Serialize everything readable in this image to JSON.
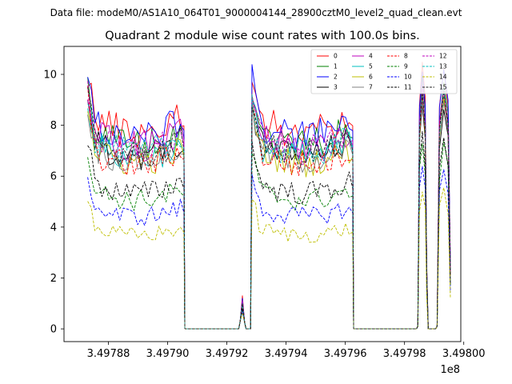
{
  "figure": {
    "suptitle": "Data file: modeM0/AS1A10_064T01_9000004144_28900cztM0_level2_quad_clean.evt",
    "title": "Quadrant 2 module wise count rates with 100.0s bins."
  },
  "chart_data": {
    "type": "line",
    "title": "Quadrant 2 module wise count rates with 100.0s bins.",
    "xlabel": "",
    "ylabel": "",
    "x_offset_label": "1e8",
    "xlim": [
      3.497865,
      3.497999
    ],
    "ylim": [
      -0.5,
      11.1
    ],
    "xticks": [
      3.49788,
      3.4979,
      3.49792,
      3.49794,
      3.49796,
      3.49798,
      3.498
    ],
    "xtick_labels": [
      "3.49788",
      "3.49790",
      "3.49792",
      "3.49794",
      "3.49796",
      "3.49798",
      "3.49800"
    ],
    "yticks": [
      0,
      2,
      4,
      6,
      8,
      10
    ],
    "ytick_labels": [
      "0",
      "2",
      "4",
      "6",
      "8",
      "10"
    ],
    "legend_position": "upper right",
    "segments": [
      {
        "kind": "data",
        "x0": 3.497873,
        "x1": 3.4979055
      },
      {
        "kind": "gap",
        "x0": 3.497906,
        "x1": 3.497924
      },
      {
        "kind": "spike",
        "x0": 3.4979245,
        "x1": 3.497926
      },
      {
        "kind": "gap",
        "x0": 3.4979265,
        "x1": 3.497928
      },
      {
        "kind": "data",
        "x0": 3.4979285,
        "x1": 3.4979625
      },
      {
        "kind": "gap",
        "x0": 3.497963,
        "x1": 3.497984
      },
      {
        "kind": "peak",
        "x0": 3.4979845,
        "x1": 3.4979875
      },
      {
        "kind": "gap",
        "x0": 3.497988,
        "x1": 3.4979905
      },
      {
        "kind": "peak",
        "x0": 3.497991,
        "x1": 3.4979955
      }
    ],
    "series": [
      {
        "name": "0",
        "color": "#ff0000",
        "style": "solid",
        "level": 8.4,
        "high": 10.2,
        "spike": 1.3
      },
      {
        "name": "1",
        "color": "#008000",
        "style": "solid",
        "level": 7.9,
        "high": 9.6,
        "spike": 1.1
      },
      {
        "name": "2",
        "color": "#0000ff",
        "style": "solid",
        "level": 8.2,
        "high": 10.0,
        "spike": 1.2
      },
      {
        "name": "3",
        "color": "#000000",
        "style": "solid",
        "level": 7.4,
        "high": 8.6,
        "spike": 1.0
      },
      {
        "name": "4",
        "color": "#bf00bf",
        "style": "solid",
        "level": 7.8,
        "high": 9.3,
        "spike": 1.1
      },
      {
        "name": "5",
        "color": "#00bfbf",
        "style": "solid",
        "level": 7.3,
        "high": 9.0,
        "spike": 1.0
      },
      {
        "name": "6",
        "color": "#bfbf00",
        "style": "solid",
        "level": 7.1,
        "high": 8.9,
        "spike": 0.9
      },
      {
        "name": "7",
        "color": "#808080",
        "style": "solid",
        "level": 7.2,
        "high": 8.8,
        "spike": 1.0
      },
      {
        "name": "8",
        "color": "#ff0000",
        "style": "dashed",
        "level": 7.0,
        "high": 9.1,
        "spike": 1.0
      },
      {
        "name": "9",
        "color": "#008000",
        "style": "dashed",
        "level": 5.5,
        "high": 7.0,
        "spike": 0.8
      },
      {
        "name": "10",
        "color": "#0000ff",
        "style": "dashed",
        "level": 4.8,
        "high": 6.2,
        "spike": 0.7
      },
      {
        "name": "11",
        "color": "#000000",
        "style": "dashed",
        "level": 5.8,
        "high": 7.4,
        "spike": 0.8
      },
      {
        "name": "12",
        "color": "#bf00bf",
        "style": "dashed",
        "level": 7.6,
        "high": 9.4,
        "spike": 1.1
      },
      {
        "name": "13",
        "color": "#00bfbf",
        "style": "dashed",
        "level": 7.5,
        "high": 9.2,
        "spike": 1.0
      },
      {
        "name": "14",
        "color": "#bfbf00",
        "style": "dashed",
        "level": 4.0,
        "high": 5.3,
        "spike": 0.6
      },
      {
        "name": "15",
        "color": "#1f1f1f",
        "style": "dashed",
        "level": 7.4,
        "high": 9.0,
        "spike": 1.0
      }
    ]
  }
}
